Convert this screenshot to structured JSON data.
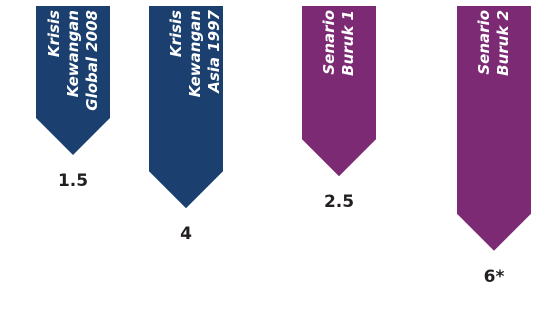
{
  "chart_data": {
    "type": "bar",
    "categories": [
      "Krisis\nKewangan\nGlobal 2008",
      "Krisis Kewangan\nAsia 1997",
      "Senario\nBuruk 1",
      "Senario\nBuruk 2"
    ],
    "values": [
      1.5,
      4,
      2.5,
      6
    ],
    "value_labels": [
      "1.5",
      "4",
      "2.5",
      "6*"
    ],
    "colors": [
      "#1b3f6e",
      "#1b3f6e",
      "#7b2a73",
      "#7b2a73"
    ],
    "orientation": "downward-arrows",
    "ylim": [
      0,
      6
    ],
    "grid": false,
    "title": "",
    "xlabel": "",
    "ylabel": ""
  }
}
